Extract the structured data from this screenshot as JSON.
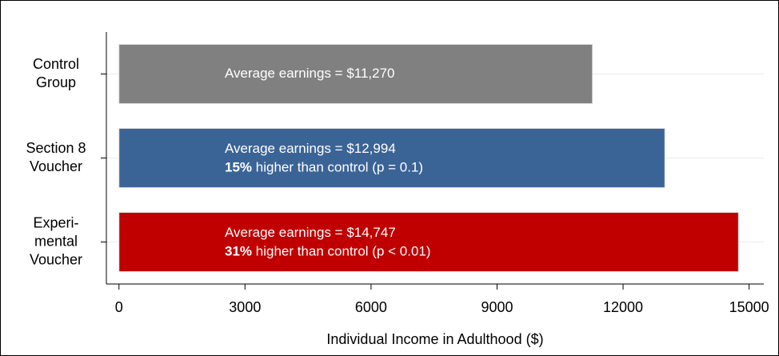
{
  "chart_data": {
    "type": "barh",
    "categories": [
      "Control\nGroup",
      "Section 8\nVoucher",
      "Experi-\nmental\nVoucher"
    ],
    "values": [
      11270,
      12994,
      14747
    ],
    "value_labels": [
      "Average earnings = $11,270",
      "Average earnings = $12,994",
      "Average earnings = $14,747"
    ],
    "notes": [
      null,
      {
        "emphasis": "15%",
        "text": " higher than control (p = 0.1)"
      },
      {
        "emphasis": "31%",
        "text": " higher than control (p < 0.01)"
      }
    ],
    "colors": [
      "#808080",
      "#3b6496",
      "#c00000"
    ],
    "xlabel": "Individual Income in Adulthood ($)",
    "xlim": [
      -300,
      15350
    ],
    "xticks": [
      0,
      3000,
      6000,
      9000,
      12000,
      15000
    ],
    "grid": true
  }
}
